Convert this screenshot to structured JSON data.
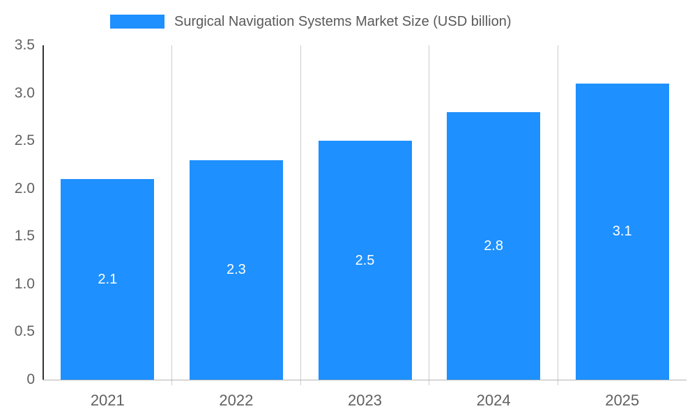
{
  "legend": {
    "series_label": "Surgical Navigation Systems Market Size (USD billion)"
  },
  "chart_data": {
    "type": "bar",
    "title": "Surgical Navigation Systems Market Size (USD billion)",
    "categories": [
      "2021",
      "2022",
      "2023",
      "2024",
      "2025"
    ],
    "values": [
      2.1,
      2.3,
      2.5,
      2.8,
      3.1
    ],
    "data_labels": [
      "2.1",
      "2.3",
      "2.5",
      "2.8",
      "3.1"
    ],
    "xlabel": "",
    "ylabel": "",
    "ylim": [
      0,
      3.5
    ],
    "ytick_labels": [
      "0",
      "0.5",
      "1.0",
      "1.5",
      "2.0",
      "2.5",
      "3.0",
      "3.5"
    ],
    "grid": "vertical-only",
    "legend_position": "top"
  },
  "colors": {
    "bar": "#1E90FF",
    "data_label": "#ffffff",
    "axis_label": "#616161",
    "legend_text": "#595959",
    "gridline": "#cccccc",
    "y_axis_line": "#333333",
    "baseline": "#b3b3b3",
    "background": "#ffffff"
  }
}
